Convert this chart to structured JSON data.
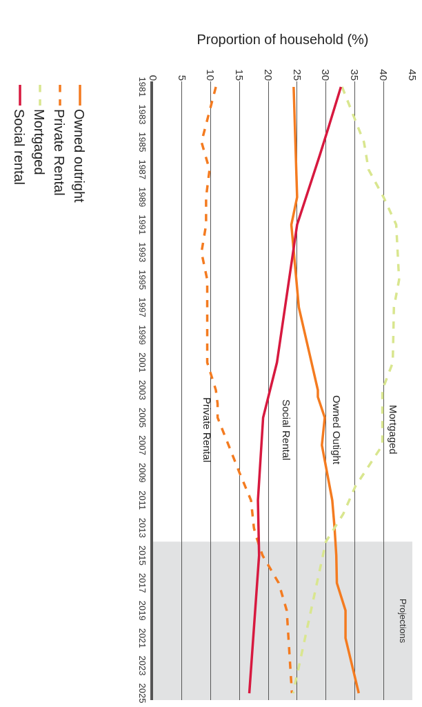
{
  "chart_data": {
    "type": "line",
    "xlabel": "Proportion of household (%)",
    "ylim": [
      2025.5,
      1980.6
    ],
    "yticks": [
      1981,
      1983,
      1985,
      1987,
      1989,
      1991,
      1993,
      1995,
      1997,
      1999,
      2001,
      2003,
      2005,
      2007,
      2009,
      2011,
      2013,
      2015,
      2017,
      2019,
      2021,
      2023,
      2025
    ],
    "xlim": [
      0,
      45
    ],
    "xticks": [
      0,
      5,
      10,
      15,
      20,
      25,
      30,
      35,
      40,
      45
    ],
    "grid": "x",
    "legend": "left",
    "marker": "none",
    "series": [
      {
        "name": "Owned outright",
        "color": "#f47b20",
        "line_style": "solid",
        "values": [
          1981,
          1989,
          1991,
          1997,
          2003,
          2003.5,
          2005,
          2007,
          2011,
          2013,
          2015,
          2017,
          2019,
          2021,
          2025
        ],
        "x": [
          24.4,
          25,
          24,
          25.3,
          28.6,
          28.6,
          29.8,
          29.3,
          31.1,
          31.5,
          31.8,
          31.9,
          33.4,
          33.4,
          35.7
        ]
      },
      {
        "name": "Private Rental",
        "color": "#f47b20",
        "line_style": "dashed",
        "values": [
          1981,
          1985,
          1987,
          1989,
          1991,
          1993,
          1995,
          2001,
          2003,
          2004,
          2005,
          2009,
          2011,
          2013,
          2013.5,
          2015,
          2017,
          2019,
          2025
        ],
        "x": [
          10.9,
          8.4,
          9.8,
          9.2,
          9.2,
          8.4,
          9.4,
          9.4,
          10.9,
          11.2,
          11.2,
          15,
          17,
          17.5,
          17.8,
          19,
          21.8,
          23.2,
          24.1
        ]
      },
      {
        "name": "Mortgaged",
        "color": "#d9e68f",
        "line_style": "dashed",
        "values": [
          1981,
          1985,
          1987,
          1989,
          1991,
          1995,
          1997,
          2001,
          2003,
          2007,
          2010,
          2012,
          2014,
          2025
        ],
        "x": [
          32.8,
          36.6,
          37.4,
          40,
          42.2,
          42.7,
          41.8,
          41.6,
          39.8,
          39.8,
          35.1,
          33,
          30,
          24.3
        ]
      },
      {
        "name": "Social rental",
        "color": "#d7193f",
        "line_style": "solid",
        "values": [
          1981,
          1984,
          1986,
          1991,
          2001,
          2005,
          2011,
          2015,
          2025
        ],
        "x": [
          32.6,
          30.4,
          28.9,
          25,
          21.5,
          19.1,
          18.2,
          18.4,
          16.7
        ]
      }
    ],
    "bands": [
      {
        "axis": "y",
        "from": 2014,
        "to": 2025.5,
        "label": "Projections",
        "color": "#e1e2e3"
      }
    ],
    "annotations": [
      "Mortgaged",
      "Owned Outight",
      "Social Rental",
      "Private Rental"
    ]
  }
}
